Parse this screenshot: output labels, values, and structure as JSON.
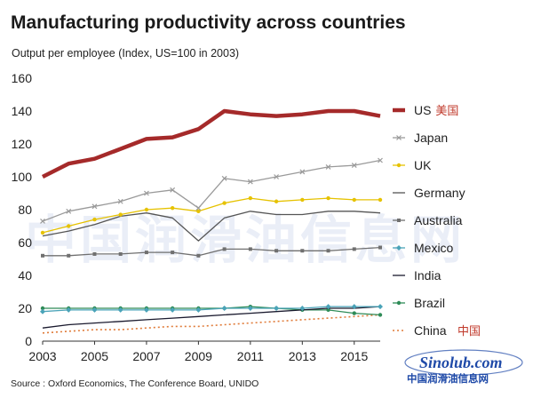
{
  "title": "Manufacturing productivity across countries",
  "subtitle": "Output per employee (Index, US=100 in 2003)",
  "source": "Source : Oxford Economics, The Conference Board, UNIDO",
  "watermark_text": "中国润滑油信息网",
  "logo": {
    "text": "中国润滑油信息网",
    "wordmark": "Sinolub.com"
  },
  "chart_data": {
    "type": "line",
    "x": [
      2003,
      2004,
      2005,
      2006,
      2007,
      2008,
      2009,
      2010,
      2011,
      2012,
      2013,
      2014,
      2015,
      2016
    ],
    "xticks": [
      "2003",
      "2005",
      "2007",
      "2009",
      "2011",
      "2013",
      "2015"
    ],
    "ylim": [
      0,
      160
    ],
    "yticks": [
      "0",
      "20",
      "40",
      "60",
      "80",
      "100",
      "120",
      "140",
      "160"
    ],
    "grid": false,
    "legend_position": "right",
    "series": [
      {
        "name": "US",
        "name_cn": "美国",
        "color": "#a52a2a",
        "style": "thick",
        "values": [
          100,
          108,
          111,
          117,
          123,
          124,
          129,
          140,
          138,
          137,
          138,
          140,
          140,
          137
        ]
      },
      {
        "name": "Japan",
        "color": "#9a9a9a",
        "style": "marker-x",
        "values": [
          73,
          79,
          82,
          85,
          90,
          92,
          81,
          99,
          97,
          100,
          103,
          106,
          107,
          110
        ]
      },
      {
        "name": "UK",
        "color": "#e6c200",
        "style": "marker-dot",
        "values": [
          66,
          70,
          74,
          77,
          80,
          81,
          79,
          84,
          87,
          85,
          86,
          87,
          86,
          86
        ]
      },
      {
        "name": "Germany",
        "color": "#555555",
        "style": "line",
        "values": [
          64,
          67,
          71,
          76,
          78,
          75,
          61,
          75,
          79,
          77,
          77,
          79,
          79,
          78
        ]
      },
      {
        "name": "Australia",
        "color": "#707070",
        "style": "marker-square",
        "values": [
          52,
          52,
          53,
          53,
          54,
          54,
          52,
          56,
          56,
          55,
          55,
          55,
          56,
          57
        ]
      },
      {
        "name": "Mexico",
        "color": "#4aa3b8",
        "style": "marker-diamond",
        "values": [
          18,
          19,
          19,
          19,
          19,
          19,
          19,
          20,
          20,
          20,
          20,
          21,
          21,
          21
        ]
      },
      {
        "name": "India",
        "color": "#1a1a2e",
        "style": "line",
        "values": [
          8,
          10,
          11,
          12,
          13,
          14,
          15,
          16,
          17,
          18,
          19,
          20,
          20,
          21
        ]
      },
      {
        "name": "Brazil",
        "color": "#2e8b57",
        "style": "marker-dot",
        "values": [
          20,
          20,
          20,
          20,
          20,
          20,
          20,
          20,
          21,
          20,
          19,
          19,
          17,
          16
        ]
      },
      {
        "name": "China",
        "name_cn": "中国",
        "color": "#e07b39",
        "style": "dotted",
        "values": [
          5,
          6,
          7,
          7,
          8,
          9,
          9,
          10,
          11,
          12,
          13,
          14,
          15,
          16
        ]
      }
    ]
  }
}
